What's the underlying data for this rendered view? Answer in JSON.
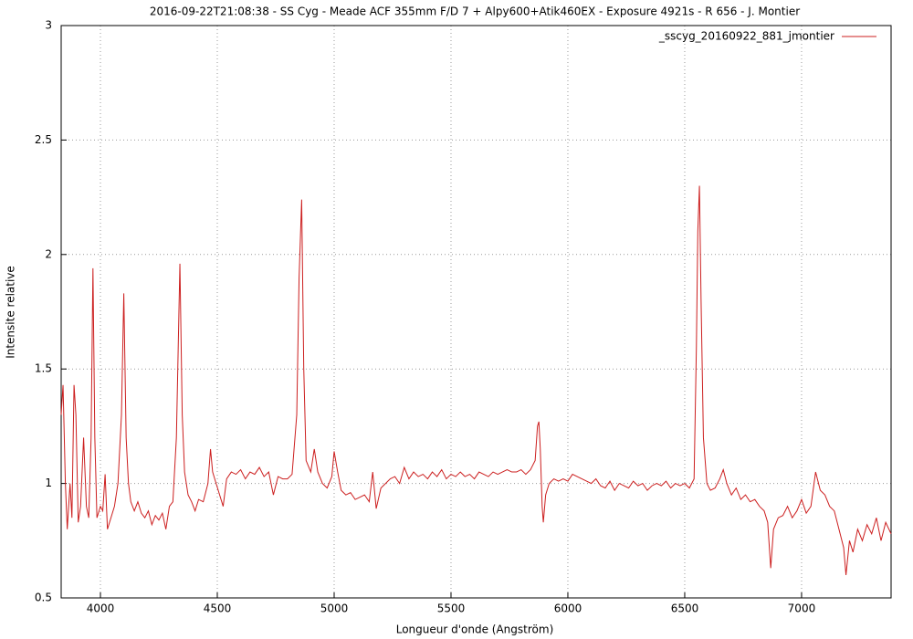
{
  "chart_data": {
    "type": "line",
    "title": "2016-09-22T21:08:38 - SS Cyg - Meade ACF 355mm F/D 7 + Alpy600+Atik460EX - Exposure 4921s - R 656 - J. Montier",
    "xlabel": "Longueur d'onde (Angström)",
    "ylabel": "Intensite relative",
    "xlim": [
      3832,
      7383
    ],
    "ylim": [
      0.5,
      3
    ],
    "xticks": [
      4000,
      4500,
      5000,
      5500,
      6000,
      6500,
      7000
    ],
    "yticks": [
      0.5,
      1,
      1.5,
      2,
      2.5,
      3
    ],
    "grid": true,
    "legend": "top-right",
    "x": [
      3832,
      3840,
      3850,
      3858,
      3870,
      3878,
      3887,
      3895,
      3905,
      3915,
      3928,
      3940,
      3950,
      3960,
      3968,
      3976,
      3985,
      4000,
      4010,
      4020,
      4030,
      4045,
      4060,
      4075,
      4090,
      4100,
      4110,
      4120,
      4130,
      4145,
      4160,
      4175,
      4190,
      4205,
      4220,
      4235,
      4250,
      4265,
      4280,
      4295,
      4310,
      4325,
      4340,
      4350,
      4360,
      4375,
      4390,
      4405,
      4420,
      4440,
      4460,
      4471,
      4480,
      4495,
      4510,
      4525,
      4540,
      4560,
      4580,
      4600,
      4620,
      4640,
      4660,
      4680,
      4700,
      4720,
      4740,
      4760,
      4780,
      4800,
      4820,
      4840,
      4850,
      4861,
      4870,
      4880,
      4900,
      4915,
      4930,
      4950,
      4970,
      4990,
      5000,
      5015,
      5030,
      5050,
      5070,
      5090,
      5110,
      5130,
      5150,
      5165,
      5180,
      5200,
      5220,
      5240,
      5260,
      5280,
      5300,
      5320,
      5340,
      5360,
      5380,
      5400,
      5420,
      5440,
      5460,
      5480,
      5500,
      5520,
      5540,
      5560,
      5580,
      5600,
      5620,
      5640,
      5660,
      5680,
      5700,
      5720,
      5740,
      5760,
      5780,
      5800,
      5820,
      5840,
      5860,
      5870,
      5876,
      5882,
      5890,
      5895,
      5905,
      5920,
      5940,
      5960,
      5980,
      6000,
      6020,
      6040,
      6060,
      6080,
      6100,
      6120,
      6140,
      6160,
      6180,
      6200,
      6220,
      6240,
      6260,
      6280,
      6300,
      6320,
      6340,
      6360,
      6380,
      6400,
      6420,
      6440,
      6460,
      6480,
      6500,
      6520,
      6540,
      6550,
      6556,
      6563,
      6570,
      6580,
      6595,
      6610,
      6630,
      6650,
      6665,
      6680,
      6700,
      6720,
      6740,
      6760,
      6780,
      6800,
      6820,
      6840,
      6855,
      6868,
      6880,
      6900,
      6920,
      6940,
      6960,
      6980,
      7000,
      7020,
      7040,
      7060,
      7080,
      7100,
      7120,
      7140,
      7160,
      7180,
      7190,
      7205,
      7220,
      7240,
      7260,
      7280,
      7300,
      7320,
      7340,
      7360,
      7383
    ],
    "series": [
      {
        "name": "_sscyg_20160922_881_jmontier",
        "color": "#cc1f1f",
        "values": [
          1.3,
          1.43,
          1.0,
          0.8,
          1.0,
          0.85,
          1.43,
          1.3,
          0.83,
          0.9,
          1.2,
          0.9,
          0.85,
          1.2,
          1.94,
          1.2,
          0.85,
          0.9,
          0.88,
          1.04,
          0.8,
          0.85,
          0.9,
          1.0,
          1.3,
          1.83,
          1.2,
          1.0,
          0.92,
          0.88,
          0.92,
          0.87,
          0.85,
          0.88,
          0.82,
          0.86,
          0.84,
          0.87,
          0.8,
          0.9,
          0.92,
          1.2,
          1.96,
          1.3,
          1.05,
          0.95,
          0.92,
          0.88,
          0.93,
          0.92,
          1.0,
          1.15,
          1.05,
          1.0,
          0.95,
          0.9,
          1.02,
          1.05,
          1.04,
          1.06,
          1.02,
          1.05,
          1.04,
          1.07,
          1.03,
          1.05,
          0.95,
          1.03,
          1.02,
          1.02,
          1.04,
          1.3,
          1.9,
          2.24,
          1.5,
          1.1,
          1.05,
          1.15,
          1.05,
          1.0,
          0.98,
          1.03,
          1.14,
          1.05,
          0.97,
          0.95,
          0.96,
          0.93,
          0.94,
          0.95,
          0.92,
          1.05,
          0.89,
          0.98,
          1.0,
          1.02,
          1.03,
          1.0,
          1.07,
          1.02,
          1.05,
          1.03,
          1.04,
          1.02,
          1.05,
          1.03,
          1.06,
          1.02,
          1.04,
          1.03,
          1.05,
          1.03,
          1.04,
          1.02,
          1.05,
          1.04,
          1.03,
          1.05,
          1.04,
          1.05,
          1.06,
          1.05,
          1.05,
          1.06,
          1.04,
          1.06,
          1.1,
          1.25,
          1.27,
          1.15,
          0.9,
          0.83,
          0.95,
          1.0,
          1.02,
          1.01,
          1.02,
          1.01,
          1.04,
          1.03,
          1.02,
          1.01,
          1.0,
          1.02,
          0.99,
          0.98,
          1.01,
          0.97,
          1.0,
          0.99,
          0.98,
          1.01,
          0.99,
          1.0,
          0.97,
          0.99,
          1.0,
          0.99,
          1.01,
          0.98,
          1.0,
          0.99,
          1.0,
          0.98,
          1.02,
          1.6,
          2.1,
          2.3,
          1.8,
          1.2,
          1.0,
          0.97,
          0.98,
          1.02,
          1.06,
          1.0,
          0.95,
          0.98,
          0.93,
          0.95,
          0.92,
          0.93,
          0.9,
          0.88,
          0.83,
          0.63,
          0.8,
          0.85,
          0.86,
          0.9,
          0.85,
          0.88,
          0.93,
          0.87,
          0.9,
          1.05,
          0.97,
          0.95,
          0.9,
          0.88,
          0.8,
          0.72,
          0.6,
          0.75,
          0.7,
          0.8,
          0.75,
          0.82,
          0.78,
          0.85,
          0.75,
          0.83,
          0.78
        ]
      }
    ]
  }
}
